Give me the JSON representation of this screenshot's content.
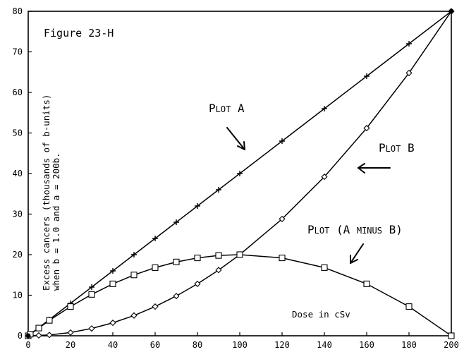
{
  "chart_data": {
    "type": "line",
    "title": "Figure 23-H",
    "xlabel": "Dose in cSv",
    "ylabel_line1": "Excess cancers (thousands of b-units)",
    "ylabel_line2": "when b = 1.0 and a = 200b.",
    "xlim": [
      0,
      200
    ],
    "ylim": [
      0,
      80
    ],
    "xticks": [
      0,
      20,
      40,
      60,
      80,
      100,
      120,
      140,
      160,
      180,
      200
    ],
    "yticks": [
      0,
      10,
      20,
      30,
      40,
      50,
      60,
      70,
      80
    ],
    "grid": false,
    "series": [
      {
        "name": "Plot A",
        "marker": "plus",
        "x": [
          0,
          1,
          5,
          10,
          20,
          30,
          40,
          50,
          60,
          70,
          80,
          90,
          100,
          120,
          140,
          160,
          180,
          200
        ],
        "y": [
          0,
          0.4,
          2,
          4,
          8,
          12,
          16,
          20,
          24,
          28,
          32,
          36,
          40,
          48,
          56,
          64,
          72,
          80
        ]
      },
      {
        "name": "Plot B",
        "marker": "diamond",
        "x": [
          0,
          5,
          10,
          20,
          30,
          40,
          50,
          60,
          70,
          80,
          90,
          100,
          120,
          140,
          160,
          180,
          200
        ],
        "y": [
          0,
          0.1,
          0.2,
          0.8,
          1.8,
          3.2,
          5,
          7.2,
          9.8,
          12.8,
          16.2,
          20,
          28.8,
          39.2,
          51.2,
          64.8,
          80
        ]
      },
      {
        "name": "Plot (A minus B)",
        "marker": "square",
        "x": [
          0,
          1,
          5,
          10,
          20,
          30,
          40,
          50,
          60,
          70,
          80,
          90,
          100,
          120,
          140,
          160,
          180,
          200
        ],
        "y": [
          0,
          0.4,
          1.9,
          3.8,
          7.2,
          10.2,
          12.8,
          15,
          16.8,
          18.2,
          19.2,
          19.8,
          20,
          19.2,
          16.8,
          12.8,
          7.2,
          0
        ]
      }
    ],
    "annotations": [
      {
        "series": "Plot A",
        "first": "P",
        "rest": "LOT",
        "suffix": " A"
      },
      {
        "series": "Plot B",
        "first": "P",
        "rest": "LOT",
        "suffix": " B"
      },
      {
        "series": "Plot (A minus B)",
        "first": "P",
        "rest": "LOT",
        "suffix": " (A ",
        "word2_first": "",
        "word2_rest": "MINUS",
        "tail": " B)"
      }
    ]
  }
}
